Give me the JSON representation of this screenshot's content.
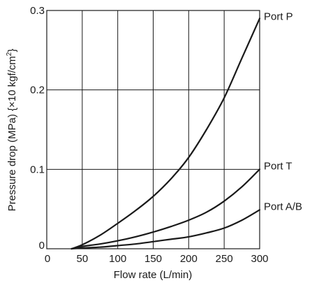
{
  "chart_data": {
    "type": "line",
    "xlabel": "Flow rate (L/min)",
    "ylabel_main": "Pressure drop (MPa) {×10 kgf/cm",
    "ylabel_sup": "2",
    "ylabel_end": "}",
    "xlim": [
      0,
      300
    ],
    "ylim": [
      0,
      0.3
    ],
    "x_ticks": [
      0,
      50,
      100,
      150,
      200,
      250,
      300
    ],
    "x_tick_labels": [
      "0",
      "50",
      "100",
      "150",
      "200",
      "250",
      "300"
    ],
    "y_ticks": [
      0,
      0.1,
      0.2,
      0.3
    ],
    "y_tick_labels": [
      "0",
      "0.1",
      "0.2",
      "0.3"
    ],
    "grid": true,
    "series": [
      {
        "name": "Port P",
        "x": [
          35,
          50,
          75,
          100,
          125,
          150,
          175,
          200,
          225,
          250,
          275,
          300
        ],
        "y": [
          0.0,
          0.005,
          0.017,
          0.032,
          0.048,
          0.066,
          0.088,
          0.115,
          0.15,
          0.19,
          0.24,
          0.29
        ]
      },
      {
        "name": "Port T",
        "x": [
          35,
          50,
          75,
          100,
          125,
          150,
          175,
          200,
          225,
          250,
          275,
          300
        ],
        "y": [
          0.0,
          0.003,
          0.006,
          0.01,
          0.015,
          0.021,
          0.028,
          0.036,
          0.046,
          0.06,
          0.078,
          0.1
        ]
      },
      {
        "name": "Port A/B",
        "x": [
          35,
          50,
          75,
          100,
          125,
          150,
          175,
          200,
          225,
          250,
          275,
          300
        ],
        "y": [
          0.0,
          0.001,
          0.002,
          0.004,
          0.006,
          0.009,
          0.012,
          0.015,
          0.02,
          0.026,
          0.036,
          0.049
        ]
      }
    ]
  }
}
